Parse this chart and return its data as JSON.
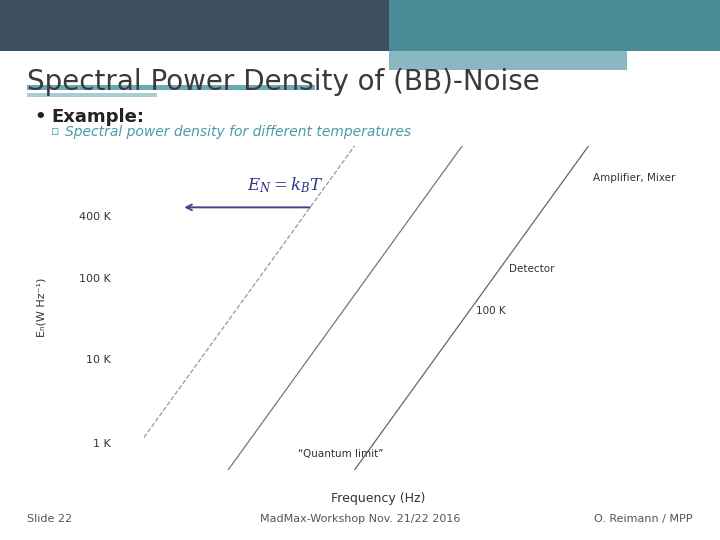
{
  "title": "Spectral Power Density of (BB)-Noise",
  "bullet": "Example:",
  "sub_bullet": "Spectral power density for different temperatures",
  "xlabel": "Frequency (Hz)",
  "ylabel": "Eₙ(W Hz⁻¹)",
  "line1_label": "“Quantum limit”",
  "line2_label": "100 K",
  "line3_label": "Detector",
  "line4_label": "Amplifier, Mixer",
  "formula": "$E_N = k_B T$",
  "footer_left": "Slide 22",
  "footer_center": "MadMax-Workshop Nov. 21/22 2016",
  "footer_right": "O. Reimann / MPP",
  "bg_color": "#ffffff",
  "header_dark": "#3d4f5c",
  "header_teal": "#4a8a96",
  "header_light": "#8ab8c0",
  "title_color": "#3a3a3a",
  "bullet_color": "#222222",
  "sub_bullet_color": "#4a9aaa",
  "line_color": "#888888",
  "formula_color": "#333388",
  "arrow_color": "#444488",
  "underline_teal": "#6aaab8",
  "underline_light": "#aaccd4"
}
